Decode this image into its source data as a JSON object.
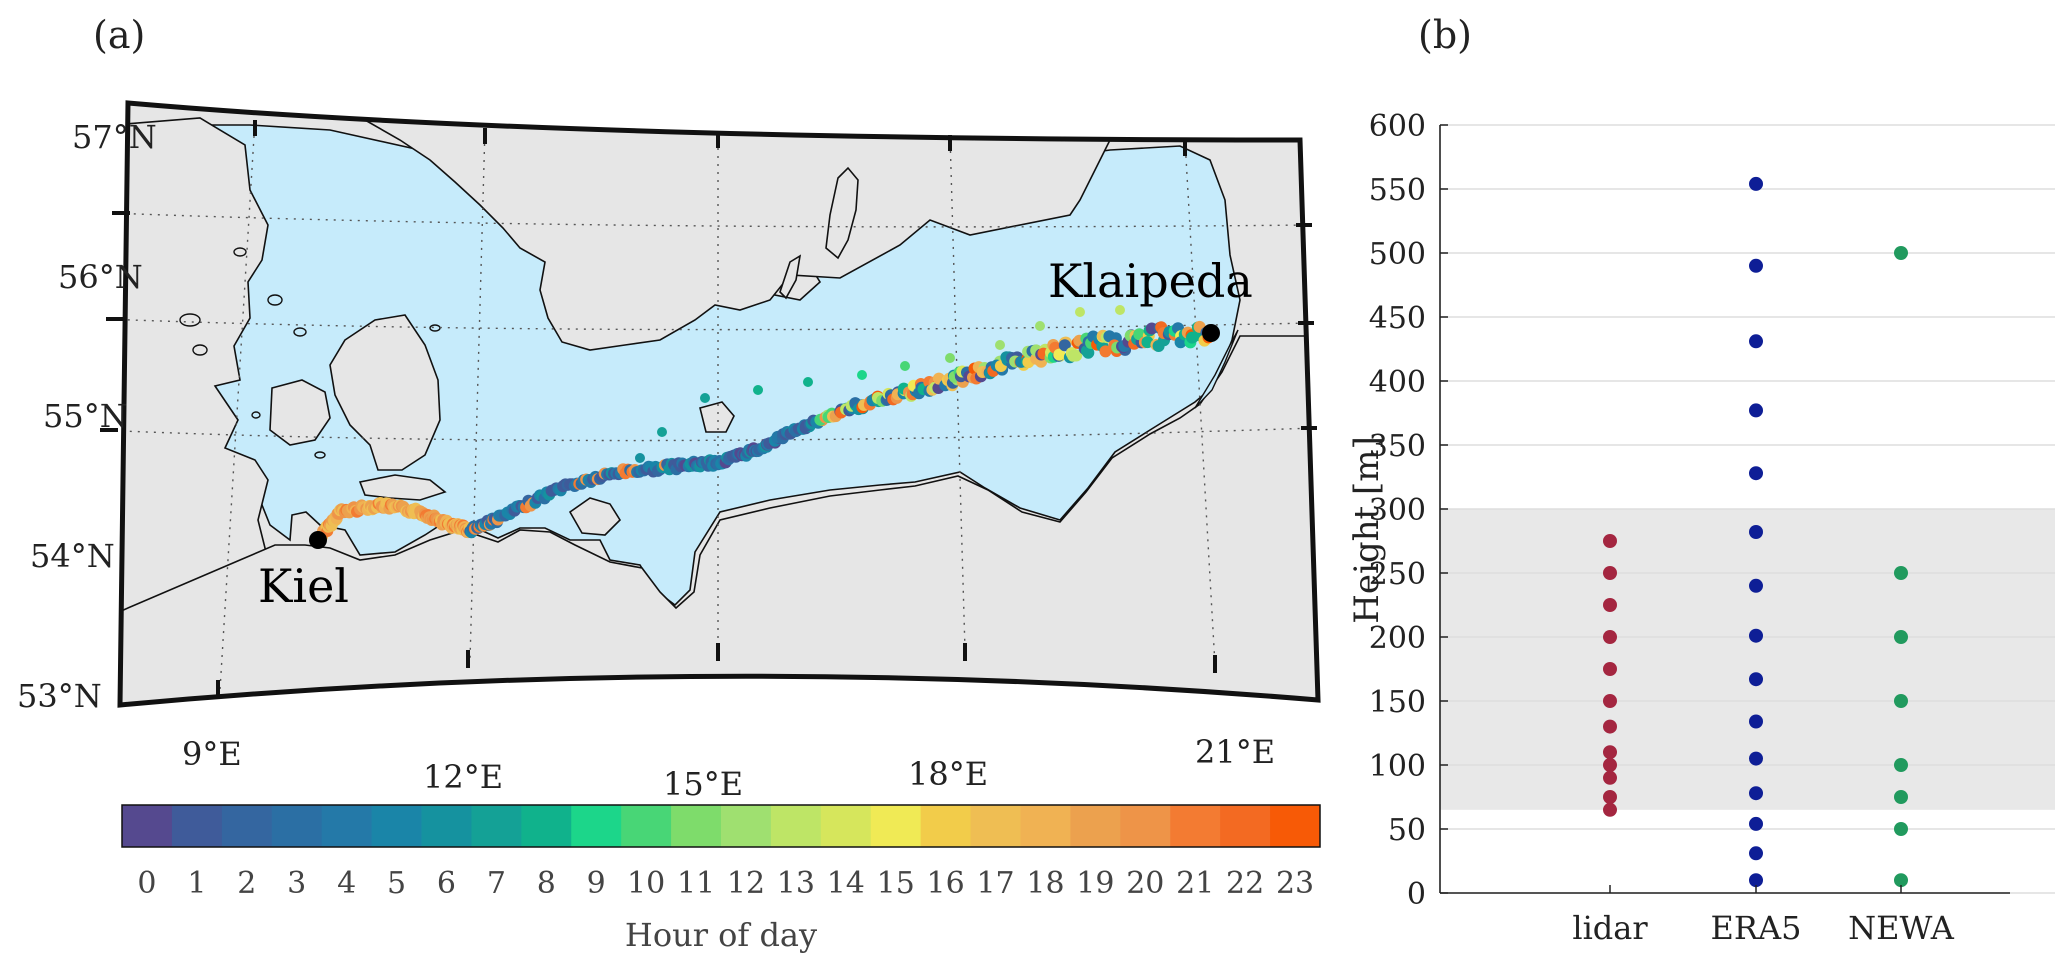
{
  "panel_a": {
    "label": "(a)",
    "map": {
      "lat_labels": [
        "57°N",
        "56°N",
        "55°N",
        "54°N",
        "53°N"
      ],
      "lon_labels": [
        "9°E",
        "12°E",
        "15°E",
        "18°E",
        "21°E"
      ],
      "cities": [
        {
          "name": "Kiel",
          "lon": 10.15,
          "lat": 54.32
        },
        {
          "name": "Klaipeda",
          "lon": 21.12,
          "lat": 55.71
        }
      ],
      "colors": {
        "land": "#e6e6e6",
        "sea": "#c6ebfb",
        "coast": "#111111",
        "grid": "#555555"
      }
    },
    "colorbar": {
      "label": "Hour of day",
      "ticks": [
        "0",
        "1",
        "2",
        "3",
        "4",
        "5",
        "6",
        "7",
        "8",
        "9",
        "10",
        "11",
        "12",
        "13",
        "14",
        "15",
        "16",
        "17",
        "18",
        "19",
        "20",
        "21",
        "22",
        "23"
      ],
      "colors": [
        "#55498f",
        "#3f5b9a",
        "#3466a0",
        "#2b6fa4",
        "#2479a8",
        "#1a85a8",
        "#15929f",
        "#14a196",
        "#10b28c",
        "#1cd68a",
        "#48d676",
        "#7edc6b",
        "#9fe070",
        "#bee566",
        "#d6e65c",
        "#f0ea55",
        "#f2cc4a",
        "#efbe53",
        "#f0b253",
        "#eca14e",
        "#ee9448",
        "#f37b32",
        "#f36a22",
        "#f75a06"
      ]
    }
  },
  "panel_b": {
    "label": "(b)",
    "chart_data": {
      "type": "scatter",
      "title": "",
      "xlabel": "",
      "ylabel": "Height [m]",
      "categories": [
        "lidar",
        "ERA5",
        "NEWA"
      ],
      "ylim": [
        0,
        600
      ],
      "yticks": [
        "0",
        "50",
        "100",
        "150",
        "200",
        "250",
        "300",
        "350",
        "400",
        "450",
        "500",
        "550",
        "600"
      ],
      "grid": true,
      "shaded_band": [
        65,
        300
      ],
      "series": [
        {
          "category": "lidar",
          "color": "#a42640",
          "values": [
            65,
            75,
            90,
            100,
            110,
            130,
            150,
            175,
            200,
            225,
            250,
            275
          ]
        },
        {
          "category": "ERA5",
          "color": "#0e1e96",
          "values": [
            10,
            31,
            54,
            78,
            105,
            134,
            167,
            201,
            240,
            282,
            328,
            377,
            431,
            490,
            554
          ]
        },
        {
          "category": "NEWA",
          "color": "#219a5e",
          "values": [
            10,
            50,
            75,
            100,
            150,
            200,
            250,
            500
          ]
        }
      ]
    }
  }
}
